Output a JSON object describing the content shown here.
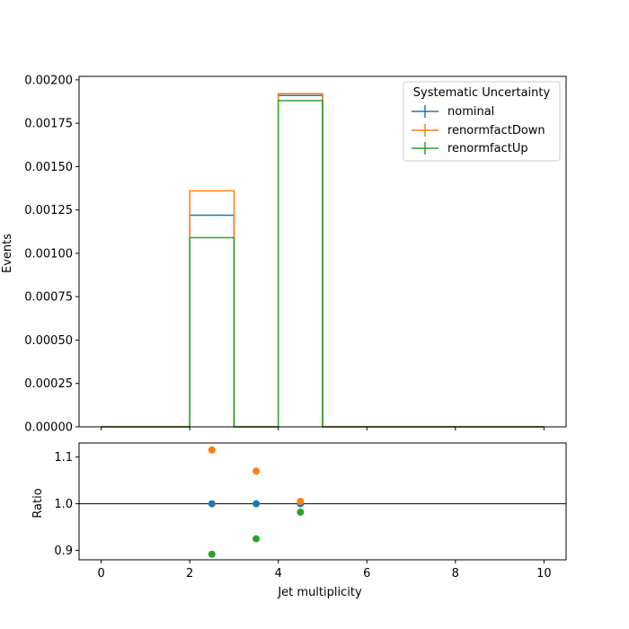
{
  "chart_data": [
    {
      "type": "line",
      "role": "main",
      "ylabel": "Events",
      "xlim": [
        -0.5,
        10.5
      ],
      "ylim": [
        0,
        0.00202
      ],
      "yticks": [
        0.0,
        0.00025,
        0.0005,
        0.00075,
        0.001,
        0.00125,
        0.0015,
        0.00175,
        0.002
      ],
      "ytick_labels": [
        "0.00000",
        "0.00025",
        "0.00050",
        "0.00075",
        "0.00100",
        "0.00125",
        "0.00150",
        "0.00175",
        "0.00200"
      ],
      "bin_edges": [
        0,
        1,
        2,
        3,
        4,
        5,
        6,
        7,
        8,
        9,
        10
      ],
      "grid": false,
      "legend": {
        "title": "Systematic Uncertainty",
        "placement": "top-right"
      },
      "series": [
        {
          "name": "nominal",
          "color": "#1f77b4",
          "values": [
            0,
            0,
            0.00122,
            0,
            0.00191,
            0,
            0,
            0,
            0,
            0
          ]
        },
        {
          "name": "renormfactDown",
          "color": "#ff7f0e",
          "values": [
            0,
            0,
            0.00136,
            0,
            0.00192,
            0,
            0,
            0,
            0,
            0
          ]
        },
        {
          "name": "renormfactUp",
          "color": "#2ca02c",
          "values": [
            0,
            0,
            0.00109,
            0,
            0.00188,
            0,
            0,
            0,
            0,
            0
          ]
        }
      ]
    },
    {
      "type": "scatter",
      "role": "ratio",
      "ylabel": "Ratio",
      "xlabel": "Jet multiplicity",
      "xlim": [
        -0.5,
        10.5
      ],
      "ylim": [
        0.88,
        1.13
      ],
      "xticks": [
        0,
        2,
        4,
        6,
        8,
        10
      ],
      "xtick_labels": [
        "0",
        "2",
        "4",
        "6",
        "8",
        "10"
      ],
      "yticks": [
        0.9,
        1.0,
        1.1
      ],
      "ytick_labels": [
        "0.9",
        "1.0",
        "1.1"
      ],
      "reference_line": 1.0,
      "grid": false,
      "series": [
        {
          "name": "nominal",
          "color": "#1f77b4",
          "x": [
            2.5,
            3.5,
            4.5
          ],
          "y": [
            1.0,
            1.0,
            1.0
          ]
        },
        {
          "name": "renormfactDown",
          "color": "#ff7f0e",
          "x": [
            2.5,
            3.5,
            4.5
          ],
          "y": [
            1.115,
            1.07,
            1.005
          ]
        },
        {
          "name": "renormfactUp",
          "color": "#2ca02c",
          "x": [
            2.5,
            3.5,
            4.5
          ],
          "y": [
            0.892,
            0.925,
            0.982
          ]
        }
      ]
    }
  ]
}
